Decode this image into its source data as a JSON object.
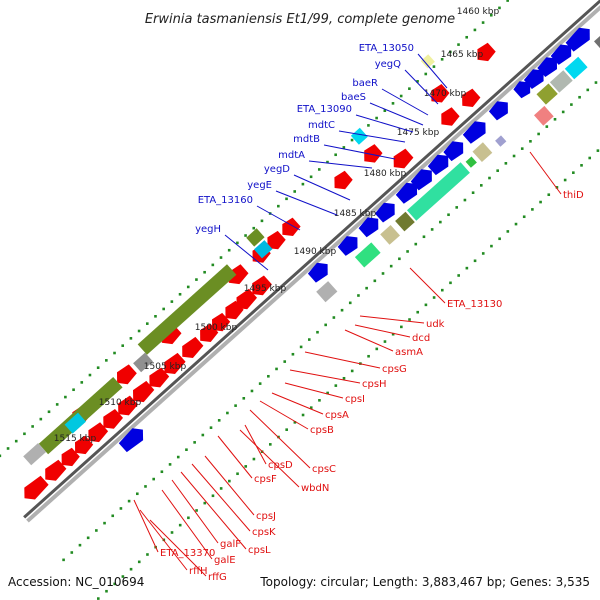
{
  "title": "Erwinia tasmaniensis Et1/99, complete genome",
  "accession_label": "Accession: NC_010694",
  "topology_label": "Topology: circular; Length: 3,883,467 bp; Genes: 3,535",
  "colors": {
    "forward_label": "#1010c8",
    "reverse_label": "#e01010",
    "forward_cds": "#0000e0",
    "reverse_cds": "#f00000",
    "backbone": "#555555",
    "dotted_ring": "#228b22"
  },
  "scale_ticks": [
    "1460 kbp",
    "1465 kbp",
    "1470 kbp",
    "1475 kbp",
    "1480 kbp",
    "1485 kbp",
    "1490 kbp",
    "1495 kbp",
    "1500 kbp",
    "1505 kbp",
    "1510 kbp",
    "1515 kbp"
  ],
  "forward_gene_labels": [
    "ETA_13050",
    "yegQ",
    "baeR",
    "baeS",
    "ETA_13090",
    "mdtC",
    "mdtB",
    "mdtA",
    "yegD",
    "yegE",
    "ETA_13160",
    "yegH"
  ],
  "reverse_gene_labels": [
    "thiD",
    "ETA_13130",
    "udk",
    "dcd",
    "asmA",
    "cpsG",
    "cpsH",
    "cpsI",
    "cpsA",
    "cpsB",
    "cpsC",
    "cpsD",
    "wbdN",
    "cpsF",
    "cpsJ",
    "cpsK",
    "cpsL",
    "galF",
    "galE",
    "ETA_13370",
    "rffH",
    "rffG"
  ]
}
